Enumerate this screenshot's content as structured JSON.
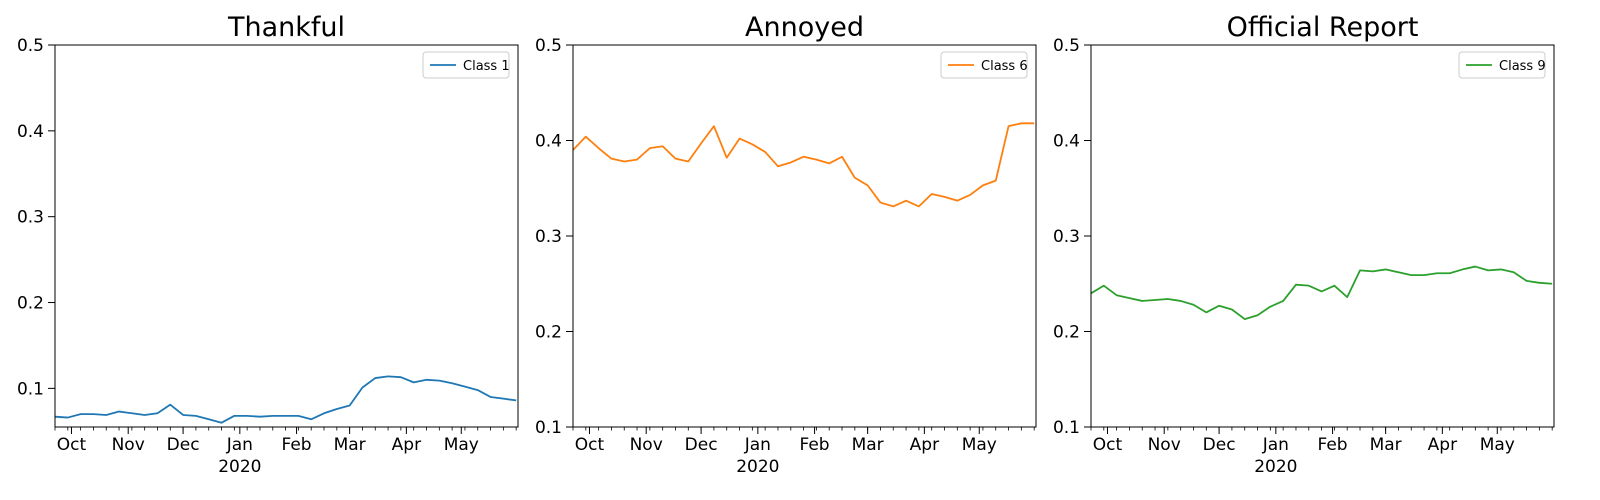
{
  "chart_data": [
    {
      "type": "line",
      "title": "Thankful",
      "xlabel": "",
      "ylabel": "",
      "ylim": [
        0.055,
        0.5
      ],
      "y_ticks": [
        "0.1",
        "0.2",
        "0.3",
        "0.4",
        "0.5"
      ],
      "x_ticks": [
        "Oct",
        "Nov",
        "Dec",
        "Jan",
        "Feb",
        "Mar",
        "Apr",
        "May"
      ],
      "year_label": "2020",
      "legend_position": "top-right",
      "grid": false,
      "series": [
        {
          "name": "Class 1",
          "color": "#1f77b4",
          "x": [
            "2019-09-22",
            "2019-09-29",
            "2019-10-06",
            "2019-10-13",
            "2019-10-20",
            "2019-10-27",
            "2019-11-03",
            "2019-11-10",
            "2019-11-17",
            "2019-11-24",
            "2019-12-01",
            "2019-12-08",
            "2019-12-15",
            "2019-12-22",
            "2019-12-29",
            "2020-01-05",
            "2020-01-12",
            "2020-01-19",
            "2020-01-26",
            "2020-02-02",
            "2020-02-09",
            "2020-02-16",
            "2020-02-23",
            "2020-03-01",
            "2020-03-08",
            "2020-03-15",
            "2020-03-22",
            "2020-03-29",
            "2020-04-05",
            "2020-04-12",
            "2020-04-19",
            "2020-04-26",
            "2020-05-03",
            "2020-05-10",
            "2020-05-17",
            "2020-05-24",
            "2020-05-31"
          ],
          "y": [
            0.067,
            0.066,
            0.07,
            0.07,
            0.069,
            0.073,
            0.071,
            0.069,
            0.071,
            0.081,
            0.069,
            0.068,
            0.064,
            0.06,
            0.068,
            0.068,
            0.067,
            0.068,
            0.068,
            0.068,
            0.064,
            0.071,
            0.076,
            0.08,
            0.101,
            0.112,
            0.114,
            0.113,
            0.107,
            0.11,
            0.109,
            0.106,
            0.102,
            0.098,
            0.09,
            0.088,
            0.086
          ]
        }
      ]
    },
    {
      "type": "line",
      "title": "Annoyed",
      "xlabel": "",
      "ylabel": "",
      "ylim": [
        0.1,
        0.5
      ],
      "y_ticks": [
        "0.1",
        "0.2",
        "0.3",
        "0.4",
        "0.5"
      ],
      "x_ticks": [
        "Oct",
        "Nov",
        "Dec",
        "Jan",
        "Feb",
        "Mar",
        "Apr",
        "May"
      ],
      "year_label": "2020",
      "legend_position": "top-right",
      "grid": false,
      "series": [
        {
          "name": "Class 6",
          "color": "#ff7f0e",
          "x": [
            "2019-09-22",
            "2019-09-29",
            "2019-10-06",
            "2019-10-13",
            "2019-10-20",
            "2019-10-27",
            "2019-11-03",
            "2019-11-10",
            "2019-11-17",
            "2019-11-24",
            "2019-12-01",
            "2019-12-08",
            "2019-12-15",
            "2019-12-22",
            "2019-12-29",
            "2020-01-05",
            "2020-01-12",
            "2020-01-19",
            "2020-01-26",
            "2020-02-02",
            "2020-02-09",
            "2020-02-16",
            "2020-02-23",
            "2020-03-01",
            "2020-03-08",
            "2020-03-15",
            "2020-03-22",
            "2020-03-29",
            "2020-04-05",
            "2020-04-12",
            "2020-04-19",
            "2020-04-26",
            "2020-05-03",
            "2020-05-10",
            "2020-05-17",
            "2020-05-24",
            "2020-05-31"
          ],
          "y": [
            0.39,
            0.404,
            0.392,
            0.381,
            0.378,
            0.38,
            0.392,
            0.394,
            0.381,
            0.378,
            0.397,
            0.415,
            0.382,
            0.402,
            0.396,
            0.388,
            0.373,
            0.377,
            0.383,
            0.38,
            0.376,
            0.383,
            0.361,
            0.353,
            0.335,
            0.331,
            0.337,
            0.331,
            0.344,
            0.341,
            0.337,
            0.343,
            0.353,
            0.358,
            0.415,
            0.418,
            0.418
          ]
        }
      ]
    },
    {
      "type": "line",
      "title": "Official Report",
      "xlabel": "",
      "ylabel": "",
      "ylim": [
        0.1,
        0.5
      ],
      "y_ticks": [
        "0.1",
        "0.2",
        "0.3",
        "0.4",
        "0.5"
      ],
      "x_ticks": [
        "Oct",
        "Nov",
        "Dec",
        "Jan",
        "Feb",
        "Mar",
        "Apr",
        "May"
      ],
      "year_label": "2020",
      "legend_position": "top-right",
      "grid": false,
      "series": [
        {
          "name": "Class 9",
          "color": "#2ca02c",
          "x": [
            "2019-09-22",
            "2019-09-29",
            "2019-10-06",
            "2019-10-13",
            "2019-10-20",
            "2019-10-27",
            "2019-11-03",
            "2019-11-10",
            "2019-11-17",
            "2019-11-24",
            "2019-12-01",
            "2019-12-08",
            "2019-12-15",
            "2019-12-22",
            "2019-12-29",
            "2020-01-05",
            "2020-01-12",
            "2020-01-19",
            "2020-01-26",
            "2020-02-02",
            "2020-02-09",
            "2020-02-16",
            "2020-02-23",
            "2020-03-01",
            "2020-03-08",
            "2020-03-15",
            "2020-03-22",
            "2020-03-29",
            "2020-04-05",
            "2020-04-12",
            "2020-04-19",
            "2020-04-26",
            "2020-05-03",
            "2020-05-10",
            "2020-05-17",
            "2020-05-24",
            "2020-05-31"
          ],
          "y": [
            0.24,
            0.248,
            0.238,
            0.235,
            0.232,
            0.233,
            0.234,
            0.232,
            0.228,
            0.22,
            0.227,
            0.223,
            0.213,
            0.217,
            0.226,
            0.232,
            0.249,
            0.248,
            0.242,
            0.248,
            0.236,
            0.264,
            0.263,
            0.265,
            0.262,
            0.259,
            0.259,
            0.261,
            0.261,
            0.265,
            0.268,
            0.264,
            0.265,
            0.262,
            0.253,
            0.251,
            0.25
          ]
        }
      ]
    }
  ]
}
